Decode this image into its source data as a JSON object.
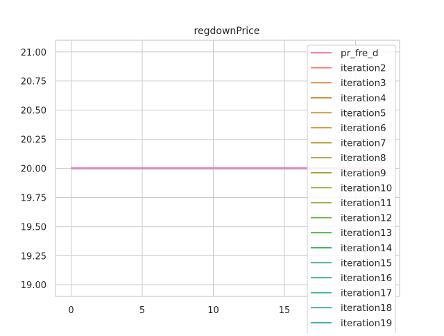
{
  "chart_data": {
    "type": "line",
    "title": "regdownPrice",
    "xlabel": "",
    "ylabel": "",
    "xlim": [
      -1.1,
      23.1
    ],
    "ylim": [
      18.9,
      21.1
    ],
    "x_ticks": [
      0,
      5,
      10,
      15,
      20
    ],
    "x_tick_labels": [
      "0",
      "5",
      "10",
      "15",
      ""
    ],
    "y_ticks": [
      19.0,
      19.25,
      19.5,
      19.75,
      20.0,
      20.25,
      20.5,
      20.75,
      21.0
    ],
    "y_tick_labels": [
      "19.00",
      "19.25",
      "19.50",
      "19.75",
      "20.00",
      "20.25",
      "20.50",
      "20.75",
      "21.00"
    ],
    "grid": true,
    "legend_position": "upper right",
    "x": [
      0,
      22
    ],
    "series": [
      {
        "name": "pr_fre_d",
        "color": "#f77189",
        "values": [
          20,
          20
        ]
      },
      {
        "name": "iteration2",
        "color": "#f7765d",
        "values": [
          20,
          20
        ]
      },
      {
        "name": "iteration3",
        "color": "#e7803c",
        "values": [
          20,
          20
        ]
      },
      {
        "name": "iteration4",
        "color": "#d68732",
        "values": [
          20,
          20
        ]
      },
      {
        "name": "iteration5",
        "color": "#c68d32",
        "values": [
          20,
          20
        ]
      },
      {
        "name": "iteration6",
        "color": "#ce9032",
        "values": [
          20,
          20
        ]
      },
      {
        "name": "iteration7",
        "color": "#b99732",
        "values": [
          20,
          20
        ]
      },
      {
        "name": "iteration8",
        "color": "#ad9c32",
        "values": [
          20,
          20
        ]
      },
      {
        "name": "iteration9",
        "color": "#a09f32",
        "values": [
          20,
          20
        ]
      },
      {
        "name": "iteration10",
        "color": "#97a432",
        "values": [
          20,
          20
        ]
      },
      {
        "name": "iteration11",
        "color": "#84a832",
        "values": [
          20,
          20
        ]
      },
      {
        "name": "iteration12",
        "color": "#6bad32",
        "values": [
          20,
          20
        ]
      },
      {
        "name": "iteration13",
        "color": "#40b236",
        "values": [
          20,
          20
        ]
      },
      {
        "name": "iteration14",
        "color": "#34b25a",
        "values": [
          20,
          20
        ]
      },
      {
        "name": "iteration15",
        "color": "#35b17a",
        "values": [
          20,
          20
        ]
      },
      {
        "name": "iteration16",
        "color": "#36b08c",
        "values": [
          20,
          20
        ]
      },
      {
        "name": "iteration17",
        "color": "#37af97",
        "values": [
          20,
          20
        ]
      },
      {
        "name": "iteration18",
        "color": "#38ada0",
        "values": [
          20,
          20
        ]
      },
      {
        "name": "iteration19",
        "color": "#39aca8",
        "values": [
          20,
          20
        ]
      }
    ],
    "overlay_color": "#dd8bbf"
  }
}
